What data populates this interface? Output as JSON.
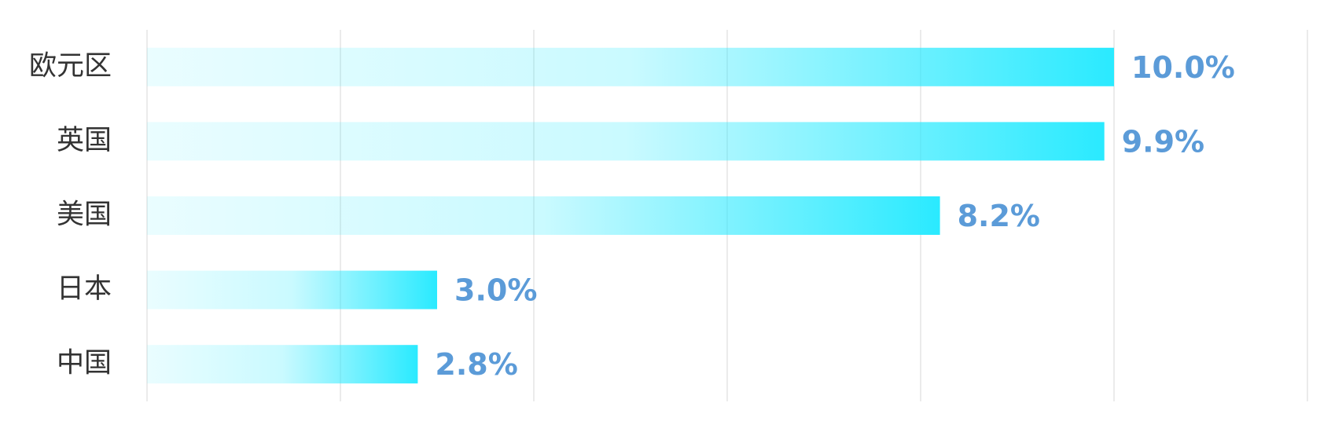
{
  "chart_data": {
    "type": "hbar",
    "categories": [
      "欧元区",
      "英国",
      "美国",
      "日本",
      "中国"
    ],
    "values": [
      10.0,
      9.9,
      8.2,
      3.0,
      2.8
    ],
    "value_labels": [
      "10.0%",
      "9.9%",
      "8.2%",
      "3.0%",
      "2.8%"
    ],
    "color": "#2aeaff",
    "xlim": [
      0,
      12
    ],
    "xticks": [
      0,
      2,
      4,
      6,
      8,
      10,
      12
    ],
    "grid": true
  }
}
